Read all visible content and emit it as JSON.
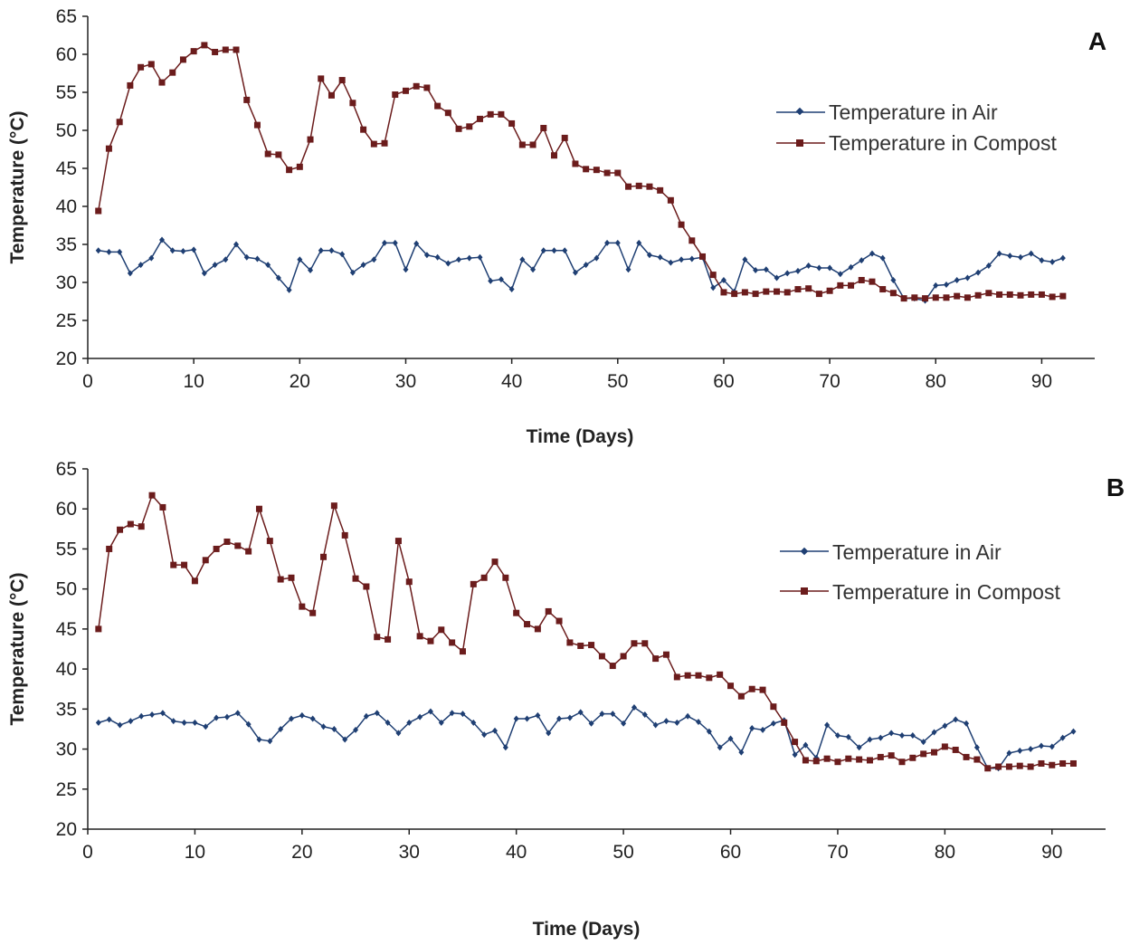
{
  "chart_data": [
    {
      "panel": "A",
      "type": "line",
      "xlabel": "Time (Days)",
      "ylabel": "Temperature (°C)",
      "xlim": [
        0,
        95
      ],
      "ylim": [
        20,
        65
      ],
      "xticks": [
        0,
        10,
        20,
        30,
        40,
        50,
        60,
        70,
        80,
        90
      ],
      "yticks": [
        20,
        25,
        30,
        35,
        40,
        45,
        50,
        55,
        60,
        65
      ],
      "grid": false,
      "legend_position": "right",
      "series": [
        {
          "name": "Temperature in Air",
          "color": "#1f3f73",
          "marker": "diamond",
          "x": [
            1,
            2,
            3,
            4,
            5,
            6,
            7,
            8,
            9,
            10,
            11,
            12,
            13,
            14,
            15,
            16,
            17,
            18,
            19,
            20,
            21,
            22,
            23,
            24,
            25,
            26,
            27,
            28,
            29,
            30,
            31,
            32,
            33,
            34,
            35,
            36,
            37,
            38,
            39,
            40,
            41,
            42,
            43,
            44,
            45,
            46,
            47,
            48,
            49,
            50,
            51,
            52,
            53,
            54,
            55,
            56,
            57,
            58,
            59,
            60,
            61,
            62,
            63,
            64,
            65,
            66,
            67,
            68,
            69,
            70,
            71,
            72,
            73,
            74,
            75,
            76,
            77,
            78,
            79,
            80,
            81,
            82,
            83,
            84,
            85,
            86,
            87,
            88,
            89,
            90,
            91,
            92
          ],
          "y": [
            34.2,
            34.0,
            34.0,
            31.2,
            32.3,
            33.2,
            35.6,
            34.2,
            34.1,
            34.3,
            31.2,
            32.3,
            33.0,
            35.0,
            33.3,
            33.1,
            32.3,
            30.6,
            29.0,
            33.0,
            31.6,
            34.2,
            34.2,
            33.7,
            31.3,
            32.3,
            33.0,
            35.2,
            35.2,
            31.7,
            35.1,
            33.6,
            33.3,
            32.5,
            33.0,
            33.2,
            33.3,
            30.2,
            30.4,
            29.1,
            33.0,
            31.7,
            34.2,
            34.2,
            34.2,
            31.3,
            32.3,
            33.2,
            35.2,
            35.2,
            31.7,
            35.2,
            33.6,
            33.3,
            32.6,
            33.0,
            33.1,
            33.3,
            29.3,
            30.3,
            28.8,
            33.0,
            31.6,
            31.7,
            30.6,
            31.2,
            31.5,
            32.2,
            31.9,
            31.9,
            31.1,
            32.0,
            32.9,
            33.8,
            33.2,
            30.3,
            27.9,
            27.9,
            27.6,
            29.6,
            29.7,
            30.3,
            30.6,
            31.3,
            32.2,
            33.8,
            33.5,
            33.3,
            33.8,
            32.9,
            32.7,
            33.2
          ]
        },
        {
          "name": "Temperature in Compost",
          "color": "#6b1c1c",
          "marker": "square",
          "x": [
            1,
            2,
            3,
            4,
            5,
            6,
            7,
            8,
            9,
            10,
            11,
            12,
            13,
            14,
            15,
            16,
            17,
            18,
            19,
            20,
            21,
            22,
            23,
            24,
            25,
            26,
            27,
            28,
            29,
            30,
            31,
            32,
            33,
            34,
            35,
            36,
            37,
            38,
            39,
            40,
            41,
            42,
            43,
            44,
            45,
            46,
            47,
            48,
            49,
            50,
            51,
            52,
            53,
            54,
            55,
            56,
            57,
            58,
            59,
            60,
            61,
            62,
            63,
            64,
            65,
            66,
            67,
            68,
            69,
            70,
            71,
            72,
            73,
            74,
            75,
            76,
            77,
            78,
            79,
            80,
            81,
            82,
            83,
            84,
            85,
            86,
            87,
            88,
            89,
            90,
            91,
            92
          ],
          "y": [
            39.4,
            47.6,
            51.1,
            55.9,
            58.3,
            58.7,
            56.3,
            57.6,
            59.3,
            60.4,
            61.2,
            60.3,
            60.6,
            60.6,
            54.0,
            50.7,
            46.9,
            46.8,
            44.8,
            45.2,
            48.8,
            56.8,
            54.6,
            56.6,
            53.6,
            50.1,
            48.2,
            48.3,
            54.7,
            55.2,
            55.8,
            55.6,
            53.2,
            52.3,
            50.2,
            50.5,
            51.5,
            52.1,
            52.1,
            50.9,
            48.1,
            48.1,
            50.3,
            46.7,
            49.0,
            45.6,
            44.9,
            44.8,
            44.4,
            44.4,
            42.6,
            42.7,
            42.6,
            42.1,
            40.8,
            37.6,
            35.5,
            33.4,
            31.0,
            28.7,
            28.5,
            28.7,
            28.5,
            28.8,
            28.8,
            28.7,
            29.1,
            29.2,
            28.5,
            28.9,
            29.6,
            29.6,
            30.3,
            30.1,
            29.1,
            28.6,
            27.9,
            28.0,
            27.9,
            28.0,
            28.0,
            28.2,
            28.0,
            28.3,
            28.6,
            28.4,
            28.4,
            28.3,
            28.4,
            28.4,
            28.1,
            28.2
          ]
        }
      ]
    },
    {
      "panel": "B",
      "type": "line",
      "xlabel": "Time (Days)",
      "ylabel": "Temperature (°C)",
      "xlim": [
        0,
        95
      ],
      "ylim": [
        20,
        65
      ],
      "xticks": [
        0,
        10,
        20,
        30,
        40,
        50,
        60,
        70,
        80,
        90
      ],
      "yticks": [
        20,
        25,
        30,
        35,
        40,
        45,
        50,
        55,
        60,
        65
      ],
      "grid": false,
      "legend_position": "right",
      "series": [
        {
          "name": "Temperature in Air",
          "color": "#1f3f73",
          "marker": "diamond",
          "x": [
            1,
            2,
            3,
            4,
            5,
            6,
            7,
            8,
            9,
            10,
            11,
            12,
            13,
            14,
            15,
            16,
            17,
            18,
            19,
            20,
            21,
            22,
            23,
            24,
            25,
            26,
            27,
            28,
            29,
            30,
            31,
            32,
            33,
            34,
            35,
            36,
            37,
            38,
            39,
            40,
            41,
            42,
            43,
            44,
            45,
            46,
            47,
            48,
            49,
            50,
            51,
            52,
            53,
            54,
            55,
            56,
            57,
            58,
            59,
            60,
            61,
            62,
            63,
            64,
            65,
            66,
            67,
            68,
            69,
            70,
            71,
            72,
            73,
            74,
            75,
            76,
            77,
            78,
            79,
            80,
            81,
            82,
            83,
            84,
            85,
            86,
            87,
            88,
            89,
            90,
            91,
            92
          ],
          "y": [
            33.3,
            33.7,
            33.0,
            33.5,
            34.1,
            34.3,
            34.5,
            33.5,
            33.3,
            33.3,
            32.8,
            33.9,
            34.0,
            34.5,
            33.1,
            31.2,
            31.0,
            32.5,
            33.8,
            34.2,
            33.8,
            32.8,
            32.5,
            31.2,
            32.4,
            34.1,
            34.5,
            33.3,
            32.0,
            33.3,
            34.0,
            34.7,
            33.3,
            34.5,
            34.4,
            33.3,
            31.8,
            32.3,
            30.2,
            33.8,
            33.8,
            34.2,
            32.0,
            33.8,
            33.9,
            34.6,
            33.2,
            34.4,
            34.4,
            33.2,
            35.2,
            34.3,
            33.0,
            33.5,
            33.3,
            34.1,
            33.4,
            32.2,
            30.2,
            31.3,
            29.6,
            32.6,
            32.4,
            33.2,
            33.6,
            29.3,
            30.5,
            28.9,
            33.0,
            31.7,
            31.5,
            30.2,
            31.2,
            31.4,
            32.0,
            31.7,
            31.7,
            30.9,
            32.1,
            32.9,
            33.7,
            33.2,
            30.2,
            27.6,
            27.6,
            29.5,
            29.8,
            30.0,
            30.4,
            30.3,
            31.4,
            32.2
          ]
        },
        {
          "name": "Temperature in Compost",
          "color": "#6b1c1c",
          "marker": "square",
          "x": [
            1,
            2,
            3,
            4,
            5,
            6,
            7,
            8,
            9,
            10,
            11,
            12,
            13,
            14,
            15,
            16,
            17,
            18,
            19,
            20,
            21,
            22,
            23,
            24,
            25,
            26,
            27,
            28,
            29,
            30,
            31,
            32,
            33,
            34,
            35,
            36,
            37,
            38,
            39,
            40,
            41,
            42,
            43,
            44,
            45,
            46,
            47,
            48,
            49,
            50,
            51,
            52,
            53,
            54,
            55,
            56,
            57,
            58,
            59,
            60,
            61,
            62,
            63,
            64,
            65,
            66,
            67,
            68,
            69,
            70,
            71,
            72,
            73,
            74,
            75,
            76,
            77,
            78,
            79,
            80,
            81,
            82,
            83,
            84,
            85,
            86,
            87,
            88,
            89,
            90,
            91,
            92
          ],
          "y": [
            45.0,
            55.0,
            57.4,
            58.1,
            57.8,
            61.7,
            60.2,
            53.0,
            53.0,
            51.0,
            53.6,
            55.0,
            55.9,
            55.4,
            54.7,
            60.0,
            56.0,
            51.2,
            51.4,
            47.8,
            47.0,
            54.0,
            60.4,
            56.7,
            51.3,
            50.3,
            44.0,
            43.7,
            56.0,
            50.9,
            44.1,
            43.5,
            44.9,
            43.3,
            42.2,
            50.6,
            51.4,
            53.4,
            51.4,
            47.0,
            45.6,
            45.0,
            47.2,
            46.0,
            43.3,
            42.9,
            43.0,
            41.6,
            40.4,
            41.6,
            43.2,
            43.2,
            41.3,
            41.8,
            39.0,
            39.2,
            39.2,
            38.9,
            39.3,
            37.9,
            36.6,
            37.5,
            37.4,
            35.3,
            33.3,
            30.9,
            28.6,
            28.5,
            28.8,
            28.4,
            28.8,
            28.7,
            28.6,
            29.0,
            29.2,
            28.4,
            28.9,
            29.4,
            29.6,
            30.3,
            29.9,
            29.0,
            28.7,
            27.6,
            27.8,
            27.8,
            27.9,
            27.8,
            28.2,
            28.0,
            28.2,
            28.2
          ]
        }
      ]
    }
  ]
}
